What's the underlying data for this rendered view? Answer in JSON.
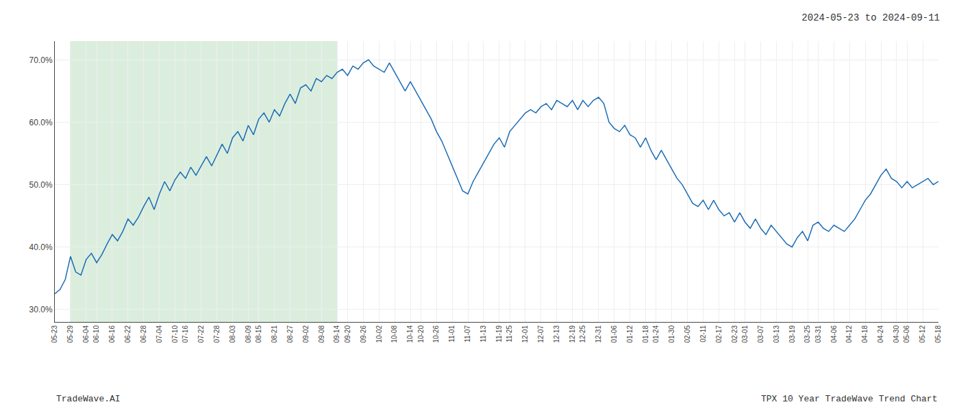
{
  "chart_data": {
    "type": "line",
    "title": "2024-05-23 to 2024-09-11",
    "annotations": [
      "TradeWave.AI",
      "TPX 10 Year TradeWave Trend Chart"
    ],
    "categories": [
      "05-23",
      null,
      null,
      "05-29",
      null,
      null,
      "06-04",
      null,
      "06-10",
      null,
      null,
      "06-16",
      null,
      null,
      "06-22",
      null,
      null,
      "06-28",
      null,
      null,
      "07-04",
      null,
      null,
      "07-10",
      null,
      "07-16",
      null,
      null,
      "07-22",
      null,
      null,
      "07-28",
      null,
      null,
      "08-03",
      null,
      null,
      "08-09",
      null,
      "08-15",
      null,
      null,
      "08-21",
      null,
      null,
      "08-27",
      null,
      null,
      "09-02",
      null,
      null,
      "09-08",
      null,
      null,
      "09-14",
      null,
      "09-20",
      null,
      null,
      "09-26",
      null,
      null,
      "10-02",
      null,
      null,
      "10-08",
      null,
      null,
      "10-14",
      null,
      "10-20",
      null,
      null,
      "10-26",
      null,
      null,
      "11-01",
      null,
      null,
      "11-07",
      null,
      null,
      "11-13",
      null,
      null,
      "11-19",
      null,
      "11-25",
      null,
      null,
      "12-01",
      null,
      null,
      "12-07",
      null,
      null,
      "12-13",
      null,
      null,
      "12-19",
      null,
      "12-25",
      null,
      null,
      "12-31",
      null,
      null,
      "01-06",
      null,
      null,
      "01-12",
      null,
      null,
      "01-18",
      null,
      "01-24",
      null,
      null,
      "01-30",
      null,
      null,
      "02-05",
      null,
      null,
      "02-11",
      null,
      null,
      "02-17",
      null,
      null,
      "02-23",
      null,
      "03-01",
      null,
      null,
      "03-07",
      null,
      null,
      "03-13",
      null,
      null,
      "03-19",
      null,
      null,
      "03-25",
      null,
      "03-31",
      null,
      null,
      "04-06",
      null,
      null,
      "04-12",
      null,
      null,
      "04-18",
      null,
      null,
      "04-24",
      null,
      null,
      "04-30",
      null,
      "05-06",
      null,
      null,
      "05-12",
      null,
      null,
      "05-18"
    ],
    "values": [
      32.5,
      33.2,
      34.8,
      38.5,
      36.0,
      35.5,
      38.0,
      39.0,
      37.5,
      38.8,
      40.5,
      42.0,
      41.0,
      42.5,
      44.5,
      43.5,
      44.8,
      46.5,
      48.0,
      46.0,
      48.5,
      50.5,
      49.0,
      50.8,
      52.0,
      51.0,
      52.8,
      51.5,
      53.0,
      54.5,
      53.0,
      54.8,
      56.5,
      55.0,
      57.5,
      58.5,
      57.0,
      59.5,
      58.0,
      60.5,
      61.5,
      60.0,
      62.0,
      61.0,
      63.0,
      64.5,
      63.0,
      65.5,
      66.0,
      65.0,
      67.0,
      66.5,
      67.5,
      67.0,
      68.0,
      68.5,
      67.5,
      69.0,
      68.5,
      69.5,
      70.0,
      69.0,
      68.5,
      68.0,
      69.5,
      68.0,
      66.5,
      65.0,
      66.5,
      65.0,
      63.5,
      62.0,
      60.5,
      58.5,
      57.0,
      55.0,
      53.0,
      51.0,
      49.0,
      48.5,
      50.5,
      52.0,
      53.5,
      55.0,
      56.5,
      57.5,
      56.0,
      58.5,
      59.5,
      60.5,
      61.5,
      62.0,
      61.5,
      62.5,
      63.0,
      62.0,
      63.5,
      63.0,
      62.5,
      63.5,
      62.0,
      63.5,
      62.5,
      63.5,
      64.0,
      63.0,
      60.0,
      59.0,
      58.5,
      59.5,
      58.0,
      57.5,
      56.0,
      57.5,
      55.5,
      54.0,
      55.5,
      54.0,
      52.5,
      51.0,
      50.0,
      48.5,
      47.0,
      46.5,
      47.5,
      46.0,
      47.5,
      46.0,
      45.0,
      45.5,
      44.0,
      45.5,
      44.0,
      43.0,
      44.5,
      43.0,
      42.0,
      43.5,
      42.5,
      41.5,
      40.5,
      40.0,
      41.5,
      42.5,
      41.0,
      43.5,
      44.0,
      43.0,
      42.5,
      43.5,
      43.0,
      42.5,
      43.5,
      44.5,
      46.0,
      47.5,
      48.5,
      50.0,
      51.5,
      52.5,
      51.0,
      50.5,
      49.5,
      50.5,
      49.5,
      50.0,
      50.5,
      51.0,
      50.0,
      50.5
    ],
    "color": "#1a6bb5",
    "ylim": [
      28,
      73
    ],
    "yticks": [
      {
        "value": 30,
        "label": "30.0%"
      },
      {
        "value": 40,
        "label": "40.0%"
      },
      {
        "value": 50,
        "label": "50.0%"
      },
      {
        "value": 60,
        "label": "60.0%"
      },
      {
        "value": 70,
        "label": "70.0%"
      }
    ],
    "grid": true,
    "highlight": {
      "from": "05-29",
      "to": "09-14",
      "color": "#dbeede"
    }
  }
}
